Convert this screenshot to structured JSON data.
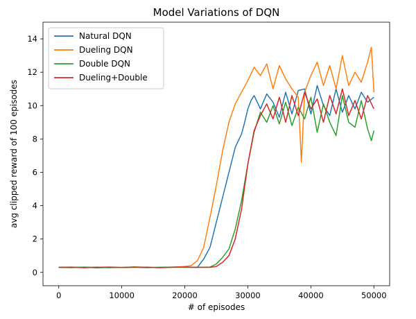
{
  "chart_data": {
    "type": "line",
    "title": "Model Variations of DQN",
    "xlabel": "# of episodes",
    "ylabel": "avg clipped reward of 100 episodes",
    "xlim": [
      -2500,
      52500
    ],
    "ylim": [
      -0.8,
      15.0
    ],
    "xticks": [
      0,
      10000,
      20000,
      30000,
      40000,
      50000
    ],
    "yticks": [
      0,
      2,
      4,
      6,
      8,
      10,
      12,
      14
    ],
    "legend_position": "top-left",
    "series": [
      {
        "name": "Natural DQN",
        "color": "#1f77b4",
        "x": [
          0,
          2000,
          4000,
          6000,
          8000,
          10000,
          12000,
          14000,
          16000,
          18000,
          20000,
          21000,
          22000,
          23000,
          24000,
          25000,
          26000,
          27000,
          28000,
          29000,
          29500,
          30000,
          30500,
          31000,
          32000,
          33000,
          34000,
          35000,
          36000,
          37000,
          38000,
          39000,
          40000,
          41000,
          42000,
          43000,
          44000,
          45000,
          46000,
          47000,
          48000,
          49000,
          50000
        ],
        "values": [
          0.3,
          0.28,
          0.32,
          0.27,
          0.3,
          0.29,
          0.31,
          0.28,
          0.3,
          0.32,
          0.33,
          0.3,
          0.3,
          0.8,
          1.5,
          3.0,
          4.5,
          6.0,
          7.5,
          8.3,
          9.0,
          9.8,
          10.3,
          10.6,
          9.8,
          10.7,
          10.2,
          9.3,
          10.8,
          9.5,
          10.9,
          11.0,
          9.5,
          11.2,
          10.0,
          9.4,
          11.0,
          9.6,
          10.6,
          9.8,
          10.8,
          10.2,
          10.5
        ]
      },
      {
        "name": "Dueling DQN",
        "color": "#ff7f0e",
        "x": [
          0,
          2000,
          4000,
          6000,
          8000,
          10000,
          12000,
          14000,
          16000,
          18000,
          20000,
          21000,
          22000,
          23000,
          24000,
          25000,
          26000,
          27000,
          28000,
          29000,
          30000,
          31000,
          32000,
          33000,
          34000,
          35000,
          36000,
          37000,
          38000,
          38500,
          39000,
          40000,
          41000,
          42000,
          43000,
          44000,
          45000,
          46000,
          47000,
          48000,
          49000,
          49600,
          50000
        ],
        "values": [
          0.3,
          0.32,
          0.28,
          0.31,
          0.3,
          0.29,
          0.33,
          0.3,
          0.28,
          0.31,
          0.35,
          0.4,
          0.7,
          1.5,
          3.3,
          5.2,
          7.3,
          9.0,
          10.1,
          10.8,
          11.5,
          12.3,
          11.8,
          12.5,
          11.0,
          12.4,
          11.6,
          11.0,
          10.5,
          6.6,
          10.8,
          11.8,
          12.6,
          11.2,
          12.4,
          11.0,
          13.0,
          11.2,
          12.0,
          11.4,
          12.6,
          13.5,
          10.8
        ]
      },
      {
        "name": "Double DQN",
        "color": "#2ca02c",
        "x": [
          0,
          2000,
          4000,
          6000,
          8000,
          10000,
          12000,
          14000,
          16000,
          18000,
          20000,
          22000,
          24000,
          25000,
          26000,
          27000,
          28000,
          29000,
          30000,
          31000,
          32000,
          33000,
          34000,
          35000,
          36000,
          37000,
          38000,
          39000,
          40000,
          41000,
          42000,
          43000,
          44000,
          45000,
          46000,
          47000,
          48000,
          49000,
          49600,
          50000
        ],
        "values": [
          0.3,
          0.29,
          0.31,
          0.3,
          0.28,
          0.3,
          0.32,
          0.29,
          0.3,
          0.31,
          0.3,
          0.3,
          0.32,
          0.5,
          0.9,
          1.4,
          2.6,
          4.3,
          6.5,
          8.4,
          9.6,
          9.0,
          10.0,
          8.9,
          10.2,
          8.8,
          9.9,
          9.2,
          10.5,
          8.4,
          10.1,
          9.0,
          8.2,
          10.6,
          9.0,
          8.7,
          10.3,
          8.6,
          7.9,
          8.5
        ]
      },
      {
        "name": "Dueling+Double",
        "color": "#d62728",
        "x": [
          0,
          2000,
          4000,
          6000,
          8000,
          10000,
          12000,
          14000,
          16000,
          18000,
          20000,
          22000,
          24000,
          25000,
          26000,
          27000,
          28000,
          29000,
          30000,
          31000,
          32000,
          33000,
          34000,
          35000,
          36000,
          37000,
          38000,
          39000,
          40000,
          41000,
          42000,
          43000,
          44000,
          45000,
          46000,
          47000,
          48000,
          49000,
          50000
        ],
        "values": [
          0.3,
          0.31,
          0.28,
          0.3,
          0.32,
          0.29,
          0.3,
          0.31,
          0.28,
          0.3,
          0.32,
          0.3,
          0.3,
          0.35,
          0.6,
          1.0,
          2.0,
          3.8,
          6.5,
          8.5,
          9.4,
          10.1,
          9.2,
          10.5,
          9.0,
          10.6,
          9.4,
          10.8,
          9.8,
          10.4,
          9.0,
          10.6,
          9.5,
          11.0,
          9.4,
          10.3,
          9.2,
          10.6,
          9.8
        ]
      }
    ]
  }
}
